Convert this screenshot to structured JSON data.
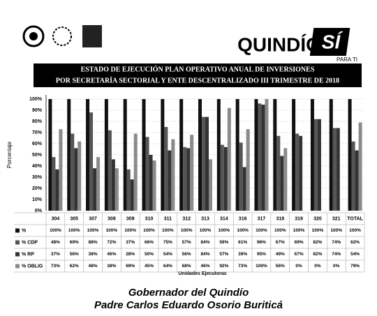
{
  "header": {
    "brand": "QUINDÍO",
    "brand_mark": "SÍ",
    "tagline": "PARA TI"
  },
  "chart_data": {
    "type": "bar",
    "title": [
      "ESTADO  DE EJECUCIÓN PLAN OPERATIVO ANUAL DE INVERSIONES",
      "POR SECRETARÍA SECTORIAL Y ENTE DESCENTRALIZADO  III TRIMESTRE DE 2018"
    ],
    "y_label": "Porcentaje",
    "x_label": "Unidades Ejecutoras",
    "categories": [
      "304",
      "305",
      "307",
      "308",
      "309",
      "310",
      "311",
      "312",
      "313",
      "314",
      "316",
      "317",
      "318",
      "319",
      "320",
      "321",
      "TOTAL"
    ],
    "ylim": [
      0,
      100
    ],
    "yticks": [
      {
        "value": 0,
        "label": "0%"
      },
      {
        "value": 10,
        "label": "10%"
      },
      {
        "value": 20,
        "label": "20%"
      },
      {
        "value": 30,
        "label": "30%"
      },
      {
        "value": 40,
        "label": "40%"
      },
      {
        "value": 50,
        "label": "50%"
      },
      {
        "value": 60,
        "label": "60%"
      },
      {
        "value": 70,
        "label": "70%"
      },
      {
        "value": 80,
        "label": "80%"
      },
      {
        "value": 90,
        "label": "90%"
      },
      {
        "value": 100,
        "label": "100%"
      }
    ],
    "grid": true,
    "series": [
      {
        "name": "%",
        "color": "#111111",
        "values": [
          100,
          100,
          100,
          100,
          100,
          100,
          100,
          100,
          100,
          100,
          100,
          100,
          100,
          100,
          100,
          100,
          100
        ],
        "value_labels": [
          "100%",
          "100%",
          "100%",
          "100%",
          "100%",
          "100%",
          "100%",
          "100%",
          "100%",
          "100%",
          "100%",
          "100%",
          "100%",
          "100%",
          "100%",
          "100%",
          "100%"
        ]
      },
      {
        "name": "% CDP",
        "color": "#555555",
        "values": [
          48,
          69,
          88,
          72,
          37,
          66,
          75,
          57,
          84,
          59,
          61,
          96,
          67,
          69,
          82,
          74,
          62
        ],
        "value_labels": [
          "48%",
          "69%",
          "88%",
          "72%",
          "37%",
          "66%",
          "75%",
          "57%",
          "84%",
          "59%",
          "61%",
          "96%",
          "67%",
          "69%",
          "82%",
          "74%",
          "62%"
        ]
      },
      {
        "name": "% RP",
        "color": "#333333",
        "values": [
          37,
          56,
          38,
          46,
          28,
          50,
          54,
          56,
          84,
          57,
          39,
          95,
          49,
          67,
          82,
          74,
          54
        ],
        "value_labels": [
          "37%",
          "56%",
          "38%",
          "46%",
          "28%",
          "50%",
          "54%",
          "56%",
          "84%",
          "57%",
          "39%",
          "95%",
          "49%",
          "67%",
          "82%",
          "74%",
          "54%"
        ]
      },
      {
        "name": "% OBLIG",
        "color": "#8a8a8a",
        "values": [
          73,
          62,
          48,
          38,
          69,
          45,
          64,
          68,
          46,
          92,
          73,
          100,
          56,
          0,
          0,
          0,
          79
        ],
        "value_labels": [
          "73%",
          "62%",
          "48%",
          "38%",
          "69%",
          "45%",
          "64%",
          "68%",
          "46%",
          "92%",
          "73%",
          "100%",
          "56%",
          "0%",
          "0%",
          "0%",
          "79%"
        ]
      }
    ]
  },
  "footer": {
    "line1": "Gobernador del Quindío",
    "line2": "Padre Carlos Eduardo Osorio Buriticá"
  }
}
